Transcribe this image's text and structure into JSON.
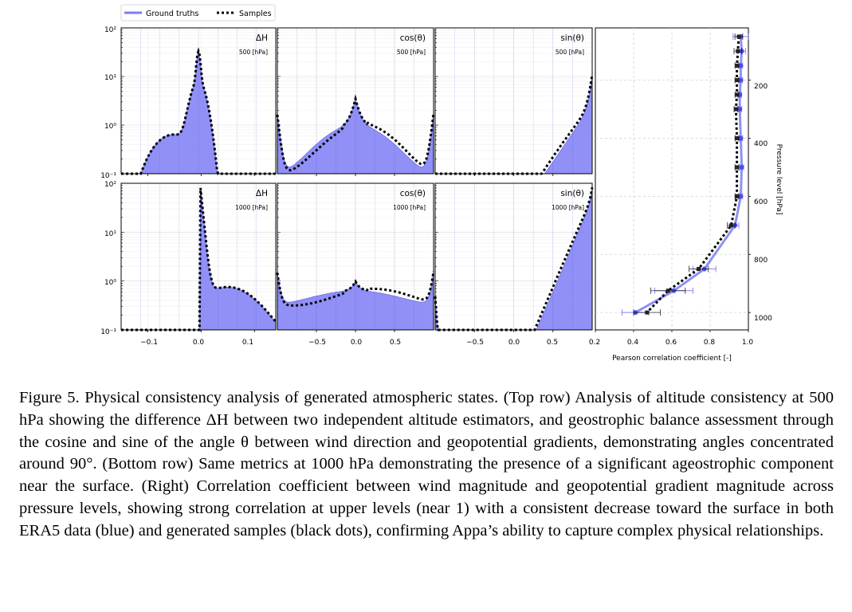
{
  "figure": {
    "legend": {
      "ground_truths": "Ground truths",
      "samples": "Samples"
    },
    "colors": {
      "ground_truth": "#5b5bf0",
      "ground_truth_fill": "#7d7df5",
      "samples": "#000000"
    },
    "panels": [
      {
        "title": "ΔH",
        "level": "500 [hPa]"
      },
      {
        "title": "cos(θ)",
        "level": "500 [hPa]"
      },
      {
        "title": "sin(θ)",
        "level": "500 [hPa]"
      },
      {
        "title": "ΔH",
        "level": "1000 [hPa]"
      },
      {
        "title": "cos(θ)",
        "level": "1000 [hPa]"
      },
      {
        "title": "sin(θ)",
        "level": "1000 [hPa]"
      }
    ],
    "y_ticks": [
      "10²",
      "10¹",
      "10⁰",
      "10⁻¹"
    ],
    "x_ticks_dh": [
      "−0.1",
      "0.0",
      "0.1"
    ],
    "x_ticks_trig": [
      "−0.5",
      "0.0",
      "0.5"
    ],
    "right_panel": {
      "xlabel": "Pearson correlation coefficient [-]",
      "ylabel": "Pressure level [hPa]",
      "x_ticks": [
        "0.2",
        "0.4",
        "0.6",
        "0.8",
        "1.0"
      ],
      "y_ticks": [
        "200",
        "400",
        "600",
        "800",
        "1000"
      ]
    }
  },
  "chart_data": {
    "type": "line",
    "xlabel": "Pearson correlation coefficient [-]",
    "ylabel": "Pressure level [hPa]",
    "xlim": [
      0.2,
      1.0
    ],
    "ylim": [
      1060,
      20
    ],
    "y_inverted": true,
    "grid": true,
    "series": [
      {
        "name": "Ground truths",
        "style": "solid",
        "points": [
          [
            0.96,
            50
          ],
          [
            0.965,
            100
          ],
          [
            0.96,
            150
          ],
          [
            0.96,
            200
          ],
          [
            0.955,
            250
          ],
          [
            0.955,
            300
          ],
          [
            0.96,
            400
          ],
          [
            0.965,
            500
          ],
          [
            0.96,
            600
          ],
          [
            0.93,
            700
          ],
          [
            0.77,
            850
          ],
          [
            0.61,
            925
          ],
          [
            0.41,
            1000
          ]
        ],
        "x_err": [
          0.04,
          0.02,
          0.01,
          0.01,
          0.01,
          0.01,
          0.01,
          0.01,
          0.01,
          0.02,
          0.06,
          0.1,
          0.07
        ]
      },
      {
        "name": "Samples",
        "style": "dotted",
        "points": [
          [
            0.95,
            50
          ],
          [
            0.945,
            100
          ],
          [
            0.94,
            150
          ],
          [
            0.94,
            200
          ],
          [
            0.94,
            250
          ],
          [
            0.935,
            300
          ],
          [
            0.94,
            400
          ],
          [
            0.94,
            500
          ],
          [
            0.94,
            600
          ],
          [
            0.91,
            700
          ],
          [
            0.74,
            850
          ],
          [
            0.58,
            925
          ],
          [
            0.47,
            1000
          ]
        ],
        "x_err": [
          0.02,
          0.02,
          0.01,
          0.01,
          0.01,
          0.01,
          0.01,
          0.01,
          0.01,
          0.02,
          0.05,
          0.09,
          0.07
        ]
      }
    ]
  },
  "caption": "Figure 5. Physical consistency analysis of generated atmospheric states. (Top row) Analysis of altitude consistency at 500 hPa showing the difference ΔH between two independent altitude estimators, and geostrophic balance assessment through the cosine and sine of the angle θ between wind direction and geopotential gradients, demonstrating angles concentrated around 90°. (Bottom row) Same metrics at 1000 hPa demonstrating the presence of a significant ageostrophic component near the surface. (Right) Correlation coefficient between wind magnitude and geopotential gradient magnitude across pressure levels, showing strong correlation at upper levels (near 1) with a consistent decrease toward the surface in both ERA5 data (blue) and generated samples (black dots), confirming Appa’s ability to capture complex physical relationships."
}
